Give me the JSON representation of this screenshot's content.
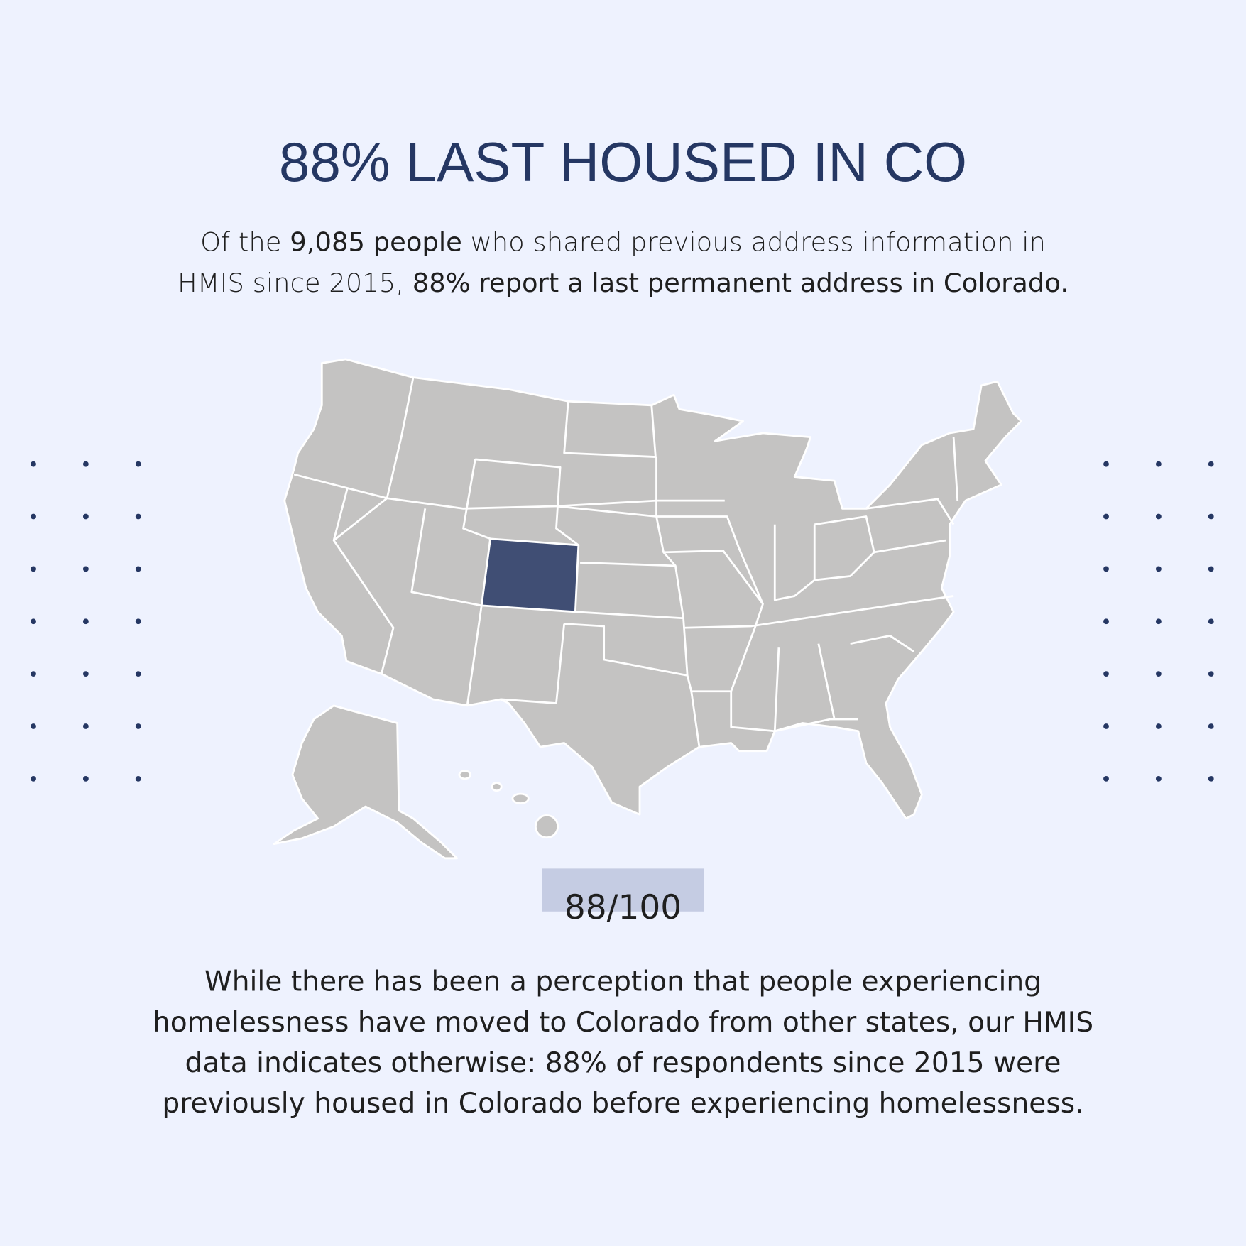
{
  "header": {
    "title": "88% LAST HOUSED IN CO"
  },
  "intro": {
    "lines": [
      [
        {
          "text": "Of the ",
          "bold": false
        },
        {
          "text": "9,085 people",
          "bold": true
        },
        {
          "text": " who shared previous address information in",
          "bold": false
        }
      ],
      [
        {
          "text": "HMIS since 2015, ",
          "bold": false
        },
        {
          "text": "88% report a last permanent address in Colorado.",
          "bold": true
        }
      ]
    ]
  },
  "stat": {
    "label": "88/100"
  },
  "body": {
    "lines": [
      "While there has been a perception that people experiencing",
      "homelessness have moved to Colorado from other states, our HMIS",
      "data indicates otherwise: 88% of respondents since 2015 were",
      "previously housed in Colorado before experiencing homelessness."
    ]
  }
}
